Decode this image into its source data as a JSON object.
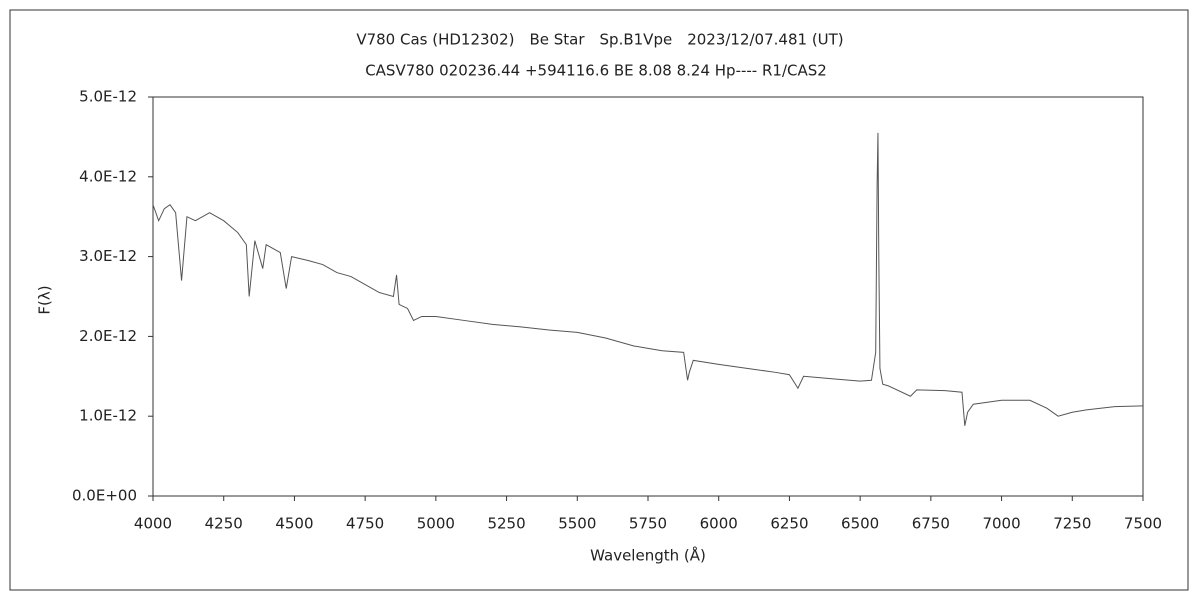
{
  "chart_data": {
    "type": "line",
    "title": "V780 Cas (HD12302)　Be Star　Sp.B1Vpe　2023/12/07.481 (UT)",
    "subtitle": "CASV780 020236.44 +594116.6 BE 8.08 8.24 Hp---- R1/CAS2",
    "x_label": "Wavelength (Å)",
    "y_label": "F(λ)",
    "xlim": [
      4000,
      7500
    ],
    "xticks": [
      4000,
      4250,
      4500,
      4750,
      5000,
      5250,
      5500,
      5750,
      6000,
      6250,
      6500,
      6750,
      7000,
      7250,
      7500
    ],
    "ylim": [
      0,
      5e-12
    ],
    "yticks": [
      {
        "value": 0,
        "label": "0.0E+00"
      },
      {
        "value": 1e-12,
        "label": "1.0E-12"
      },
      {
        "value": 2e-12,
        "label": "2.0E-12"
      },
      {
        "value": 3e-12,
        "label": "3.0E-12"
      },
      {
        "value": 4e-12,
        "label": "4.0E-12"
      },
      {
        "value": 5e-12,
        "label": "5.0E-12"
      }
    ],
    "grid": false,
    "series": [
      {
        "color": "#555555",
        "x": [
          4000,
          4020,
          4040,
          4060,
          4080,
          4101,
          4120,
          4150,
          4200,
          4250,
          4300,
          4330,
          4340,
          4360,
          4388,
          4400,
          4450,
          4471,
          4490,
          4550,
          4600,
          4650,
          4700,
          4750,
          4800,
          4850,
          4861,
          4870,
          4900,
          4921,
          4950,
          5000,
          5100,
          5200,
          5300,
          5400,
          5500,
          5600,
          5700,
          5750,
          5800,
          5876,
          5890,
          5896,
          5910,
          6000,
          6100,
          6200,
          6250,
          6280,
          6300,
          6400,
          6500,
          6540,
          6555,
          6560,
          6563,
          6566,
          6570,
          6580,
          6600,
          6678,
          6700,
          6800,
          6860,
          6870,
          6880,
          6900,
          7000,
          7100,
          7160,
          7200,
          7250,
          7300,
          7400,
          7500
        ],
        "values": [
          3.65e-12,
          3.45e-12,
          3.6e-12,
          3.65e-12,
          3.55e-12,
          2.7e-12,
          3.5e-12,
          3.45e-12,
          3.55e-12,
          3.45e-12,
          3.3e-12,
          3.15e-12,
          2.5e-12,
          3.2e-12,
          2.85e-12,
          3.15e-12,
          3.05e-12,
          2.6e-12,
          3e-12,
          2.95e-12,
          2.9e-12,
          2.8e-12,
          2.75e-12,
          2.65e-12,
          2.55e-12,
          2.5e-12,
          2.77e-12,
          2.4e-12,
          2.35e-12,
          2.2e-12,
          2.25e-12,
          2.25e-12,
          2.2e-12,
          2.15e-12,
          2.12e-12,
          2.08e-12,
          2.05e-12,
          1.98e-12,
          1.88e-12,
          1.85e-12,
          1.82e-12,
          1.8e-12,
          1.45e-12,
          1.55e-12,
          1.7e-12,
          1.65e-12,
          1.6e-12,
          1.55e-12,
          1.52e-12,
          1.35e-12,
          1.5e-12,
          1.47e-12,
          1.44e-12,
          1.45e-12,
          1.8e-12,
          3.9e-12,
          4.55e-12,
          3e-12,
          1.6e-12,
          1.4e-12,
          1.38e-12,
          1.25e-12,
          1.33e-12,
          1.32e-12,
          1.3e-12,
          8.8e-13,
          1.05e-12,
          1.15e-12,
          1.2e-12,
          1.2e-12,
          1.1e-12,
          1e-12,
          1.05e-12,
          1.08e-12,
          1.12e-12,
          1.13e-12
        ]
      }
    ]
  }
}
